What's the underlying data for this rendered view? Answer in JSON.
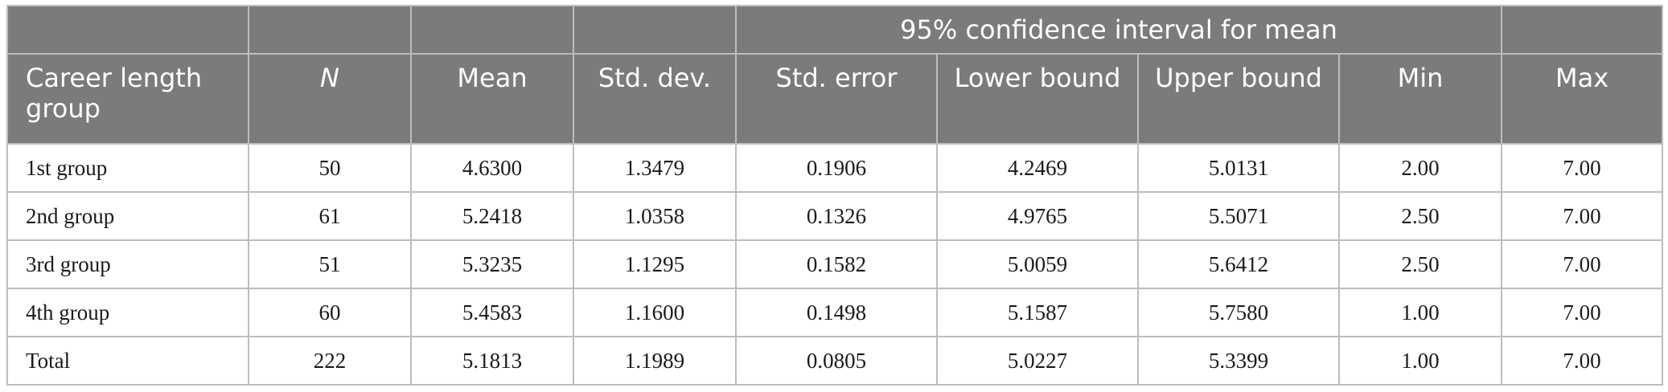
{
  "table": {
    "super_header": "95% confidence interval for mean",
    "headers": [
      "Career length group",
      "N",
      "Mean",
      "Std. dev.",
      "Std. error",
      "Lower bound",
      "Upper bound",
      "Min",
      "Max"
    ],
    "rows": [
      [
        "1st group",
        "50",
        "4.6300",
        "1.3479",
        "0.1906",
        "4.2469",
        "5.0131",
        "2.00",
        "7.00"
      ],
      [
        "2nd group",
        "61",
        "5.2418",
        "1.0358",
        "0.1326",
        "4.9765",
        "5.5071",
        "2.50",
        "7.00"
      ],
      [
        "3rd group",
        "51",
        "5.3235",
        "1.1295",
        "0.1582",
        "5.0059",
        "5.6412",
        "2.50",
        "7.00"
      ],
      [
        "4th group",
        "60",
        "5.4583",
        "1.1600",
        "0.1498",
        "5.1587",
        "5.7580",
        "1.00",
        "7.00"
      ],
      [
        "Total",
        "222",
        "5.1813",
        "1.1989",
        "0.0805",
        "5.0227",
        "5.3399",
        "1.00",
        "7.00"
      ]
    ]
  }
}
